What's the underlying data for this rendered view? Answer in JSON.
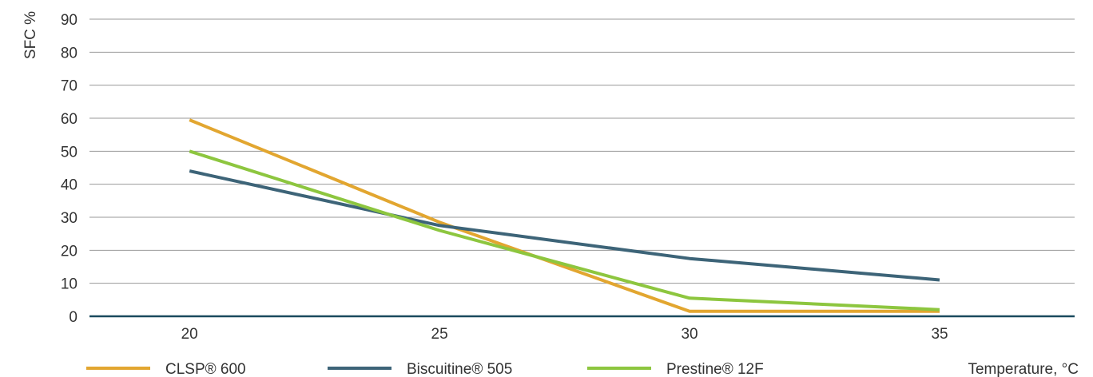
{
  "chart_data": {
    "type": "line",
    "title": "",
    "xlabel": "Temperature, °C",
    "ylabel": "SFC %",
    "x": [
      20,
      25,
      30,
      35
    ],
    "x_tick_labels": [
      "20",
      "25",
      "30",
      "35"
    ],
    "y_tick_labels": [
      "0",
      "10",
      "20",
      "30",
      "40",
      "50",
      "60",
      "70",
      "80",
      "90"
    ],
    "ylim": [
      0,
      90
    ],
    "grid": "horizontal",
    "legend_position": "bottom",
    "series": [
      {
        "name": "CLSP® 600",
        "color": "#E2A630",
        "values": [
          59.5,
          28.5,
          1.5,
          1.5
        ]
      },
      {
        "name": "Biscuitine® 505",
        "color": "#3D6478",
        "values": [
          44,
          27.5,
          17.5,
          11
        ]
      },
      {
        "name": "Prestine® 12F",
        "color": "#8DC63F",
        "values": [
          50,
          26,
          5.5,
          2
        ]
      }
    ]
  }
}
